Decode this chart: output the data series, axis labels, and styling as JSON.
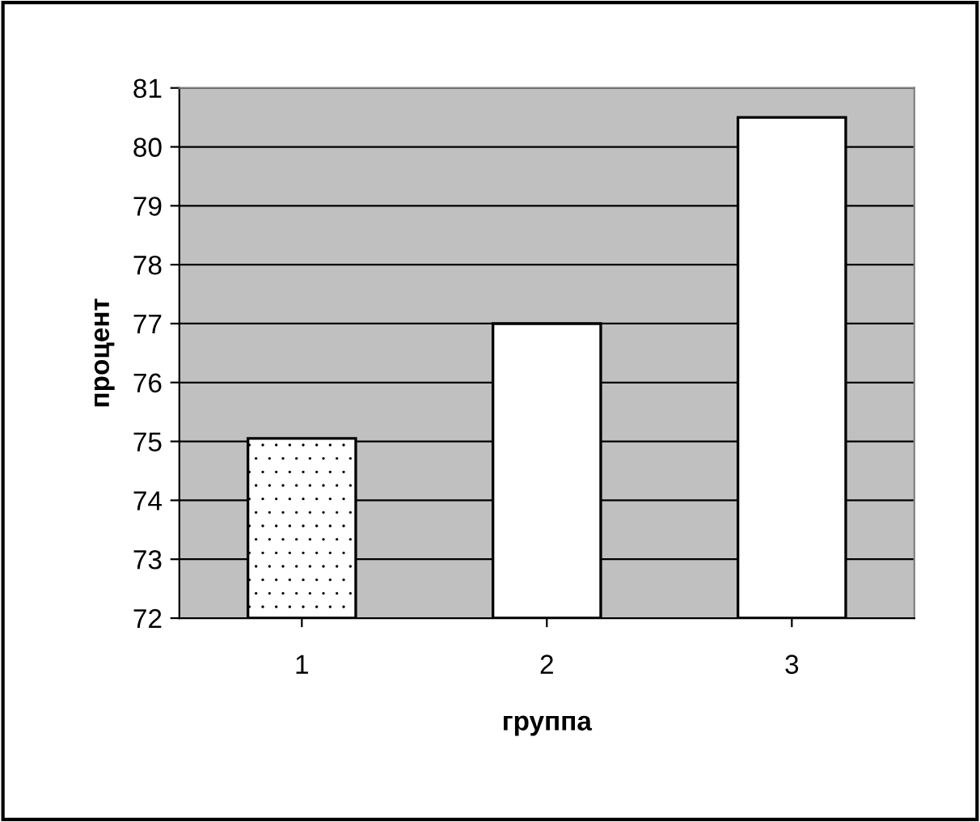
{
  "chart_data": {
    "type": "bar",
    "xlabel": "группа",
    "ylabel": "процент",
    "categories": [
      "1",
      "2",
      "3"
    ],
    "values": [
      75.05,
      77.0,
      80.5
    ],
    "colors": [
      "#ffffff",
      "#ffffff",
      "#ffffff"
    ],
    "ylim": [
      72,
      81
    ],
    "yticks": [
      72,
      73,
      74,
      75,
      76,
      77,
      78,
      79,
      80,
      81
    ],
    "grid": "y"
  }
}
